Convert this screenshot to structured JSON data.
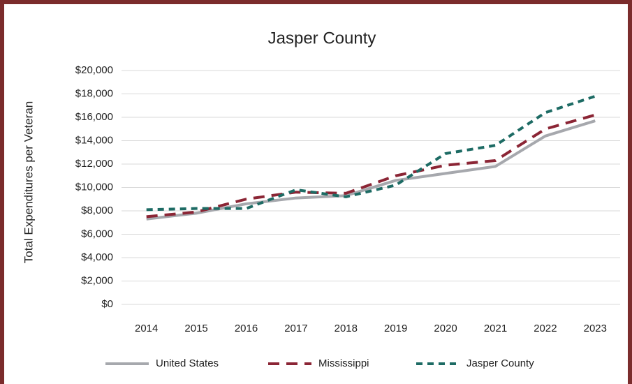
{
  "chart_data": {
    "type": "line",
    "title": "Jasper County",
    "y_label": "Total Expenditures per Veteran",
    "categories": [
      "2014",
      "2015",
      "2016",
      "2017",
      "2018",
      "2019",
      "2020",
      "2021",
      "2022",
      "2023"
    ],
    "series": [
      {
        "name": "United States",
        "color": "#a6a8ad",
        "style": "solid",
        "values": [
          7300,
          7800,
          8600,
          9100,
          9300,
          10600,
          11200,
          11800,
          14400,
          15700
        ]
      },
      {
        "name": "Mississippi",
        "color": "#8b2535",
        "style": "dashed",
        "values": [
          7500,
          7900,
          9000,
          9600,
          9500,
          11000,
          11900,
          12300,
          15000,
          16200
        ]
      },
      {
        "name": "Jasper County",
        "color": "#1d6b64",
        "style": "short-dashed",
        "values": [
          8100,
          8200,
          8200,
          9800,
          9200,
          10200,
          12900,
          13600,
          16400,
          17800
        ]
      }
    ],
    "ylim": [
      0,
      20000
    ],
    "yticks": [
      {
        "value": 0,
        "label": "$0"
      },
      {
        "value": 2000,
        "label": "$2,000"
      },
      {
        "value": 4000,
        "label": "$4,000"
      },
      {
        "value": 6000,
        "label": "$6,000"
      },
      {
        "value": 8000,
        "label": "$8,000"
      },
      {
        "value": 10000,
        "label": "$10,000"
      },
      {
        "value": 12000,
        "label": "$12,000"
      },
      {
        "value": 14000,
        "label": "$14,000"
      },
      {
        "value": 16000,
        "label": "$16,000"
      },
      {
        "value": 18000,
        "label": "$18,000"
      },
      {
        "value": 20000,
        "label": "$20,000"
      }
    ],
    "grid": true,
    "legend": "bottom"
  }
}
